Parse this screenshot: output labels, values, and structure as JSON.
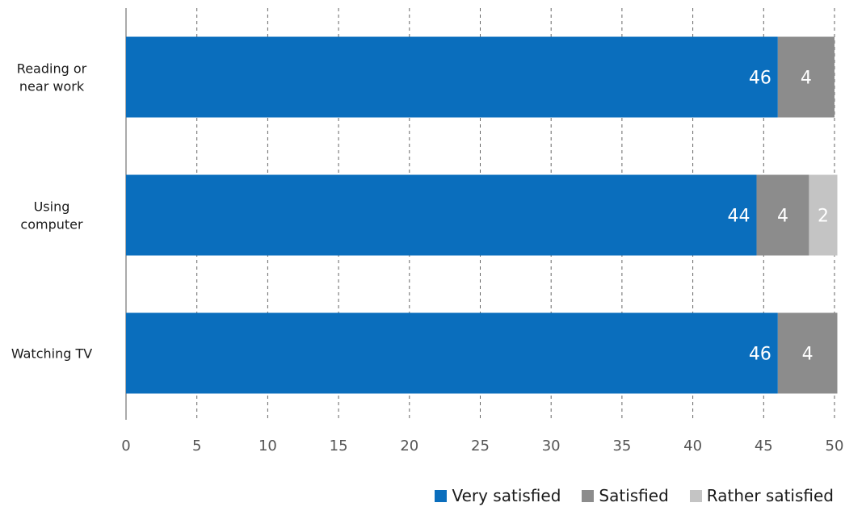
{
  "chart_data": {
    "type": "bar",
    "orientation": "horizontal",
    "stacked": true,
    "categories": [
      "Reading or near work",
      "Using computer",
      "Watching TV"
    ],
    "category_lines": [
      [
        "Reading or",
        "near work"
      ],
      [
        "Using",
        "computer"
      ],
      [
        "Watching TV"
      ]
    ],
    "series": [
      {
        "name": "Very satisfied",
        "color": "#0a6ebd",
        "values": [
          46,
          44.5,
          46
        ]
      },
      {
        "name": "Satisfied",
        "color": "#8c8c8c",
        "values": [
          4,
          3.7,
          4.2
        ]
      },
      {
        "name": "Rather satisfied",
        "color": "#c4c4c4",
        "values": [
          0,
          2,
          0
        ]
      }
    ],
    "data_labels": [
      [
        "46",
        "4",
        ""
      ],
      [
        "44",
        "4",
        "2"
      ],
      [
        "46",
        "4",
        ""
      ]
    ],
    "xlim": [
      0,
      50
    ],
    "xticks": [
      0,
      5,
      10,
      15,
      20,
      25,
      30,
      35,
      40,
      45,
      50
    ],
    "xtick_labels": [
      "0",
      "5",
      "10",
      "15",
      "20",
      "25",
      "30",
      "35",
      "40",
      "45",
      "50"
    ],
    "grid": "vertical dashed",
    "legend_position": "bottom-right",
    "title": "",
    "xlabel": "",
    "ylabel": ""
  }
}
